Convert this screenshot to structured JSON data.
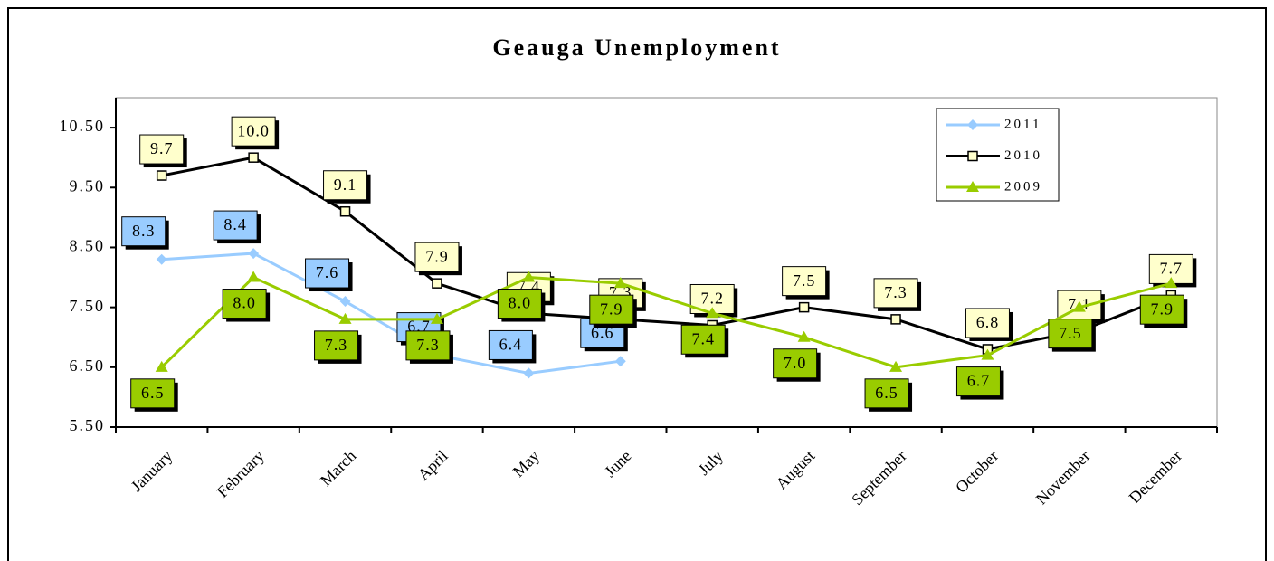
{
  "chart_data": {
    "type": "line",
    "title": "Geauga Unemployment",
    "categories": [
      "January",
      "February",
      "March",
      "April",
      "May",
      "June",
      "July",
      "August",
      "September",
      "October",
      "November",
      "December"
    ],
    "series": [
      {
        "name": "2011",
        "color": "#99ccff",
        "marker": "diamond",
        "label_fill": "#99ccff",
        "values": [
          8.3,
          8.4,
          7.6,
          6.7,
          6.4,
          6.6,
          null,
          null,
          null,
          null,
          null,
          null
        ],
        "value_labels": [
          "8.3",
          "8.4",
          "7.6",
          "6.7",
          "6.4",
          "6.6",
          null,
          null,
          null,
          null,
          null,
          null
        ]
      },
      {
        "name": "2010",
        "color": "#000000",
        "marker": "square",
        "label_fill": "#ffffcc",
        "values": [
          9.7,
          10.0,
          9.1,
          7.9,
          7.4,
          7.3,
          7.2,
          7.5,
          7.3,
          6.8,
          7.1,
          7.7
        ],
        "value_labels": [
          "9.7",
          "10.0",
          "9.1",
          "7.9",
          "7.4",
          "7.3",
          "7.2",
          "7.5",
          "7.3",
          "6.8",
          "7.1",
          "7.7"
        ]
      },
      {
        "name": "2009",
        "color": "#99cc00",
        "marker": "triangle",
        "label_fill": "#99cc00",
        "values": [
          6.5,
          8.0,
          7.3,
          7.3,
          8.0,
          7.9,
          7.4,
          7.0,
          6.5,
          6.7,
          7.5,
          7.9
        ],
        "value_labels": [
          "6.5",
          "8.0",
          "7.3",
          "7.3",
          "8.0",
          "7.9",
          "7.4",
          "7.0",
          "6.5",
          "6.7",
          "7.5",
          "7.9"
        ]
      }
    ],
    "ylim": [
      5.5,
      11.0
    ],
    "yticks": [
      {
        "value": 5.5,
        "label": "5.50"
      },
      {
        "value": 6.5,
        "label": "6.50"
      },
      {
        "value": 7.5,
        "label": "7.50"
      },
      {
        "value": 8.5,
        "label": "8.50"
      },
      {
        "value": 9.5,
        "label": "9.50"
      },
      {
        "value": 10.5,
        "label": "10.50"
      }
    ],
    "legend": "top-right"
  }
}
